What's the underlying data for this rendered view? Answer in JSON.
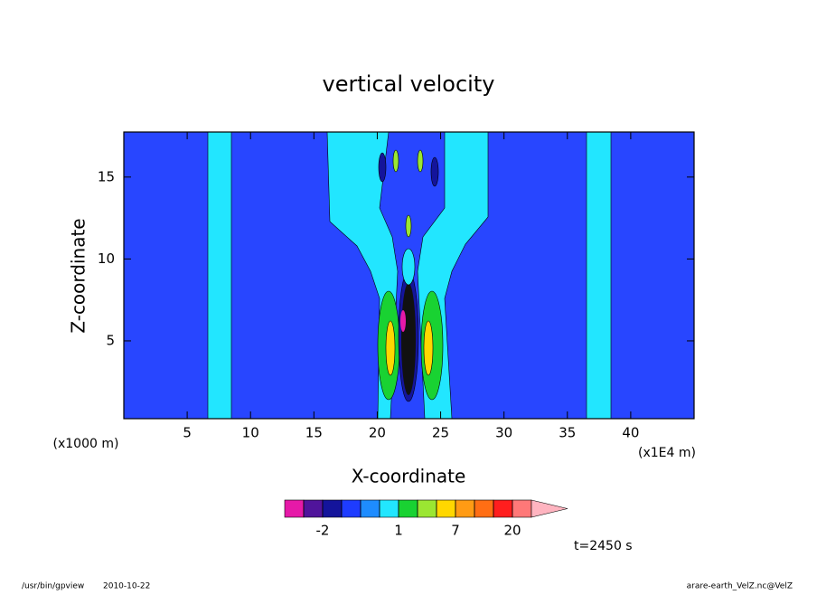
{
  "chart_data": {
    "type": "contour",
    "title": "vertical velocity",
    "xlabel": "X-coordinate",
    "ylabel": "Z-coordinate",
    "x_unit": "(x1E4 m)",
    "y_unit": "(x1000 m)",
    "xlim": [
      0,
      45
    ],
    "xticks": [
      5,
      10,
      15,
      20,
      25,
      30,
      35,
      40
    ],
    "ylim": [
      0.25,
      17.75
    ],
    "yticks": [
      5,
      10,
      15
    ],
    "colorbar": {
      "colors": [
        "#e619a8",
        "#50149b",
        "#14149b",
        "#1e3cff",
        "#1e8cff",
        "#22e6ff",
        "#19d232",
        "#9be632",
        "#ffd700",
        "#ff9b14",
        "#ff6e14",
        "#ff1e1e",
        "#ff7878",
        "#ffb4c0"
      ],
      "levels": [
        -3,
        -2,
        -1,
        -0.5,
        0.5,
        1,
        2,
        4,
        7,
        10,
        15,
        20
      ],
      "ticks": [
        -2,
        1,
        7,
        20
      ]
    },
    "time_label": "t=2450 s",
    "footer_program": "/usr/bin/gpview",
    "footer_date": "2010-10-22",
    "footer_source": "arare-earth_VelZ.nc@VelZ"
  }
}
